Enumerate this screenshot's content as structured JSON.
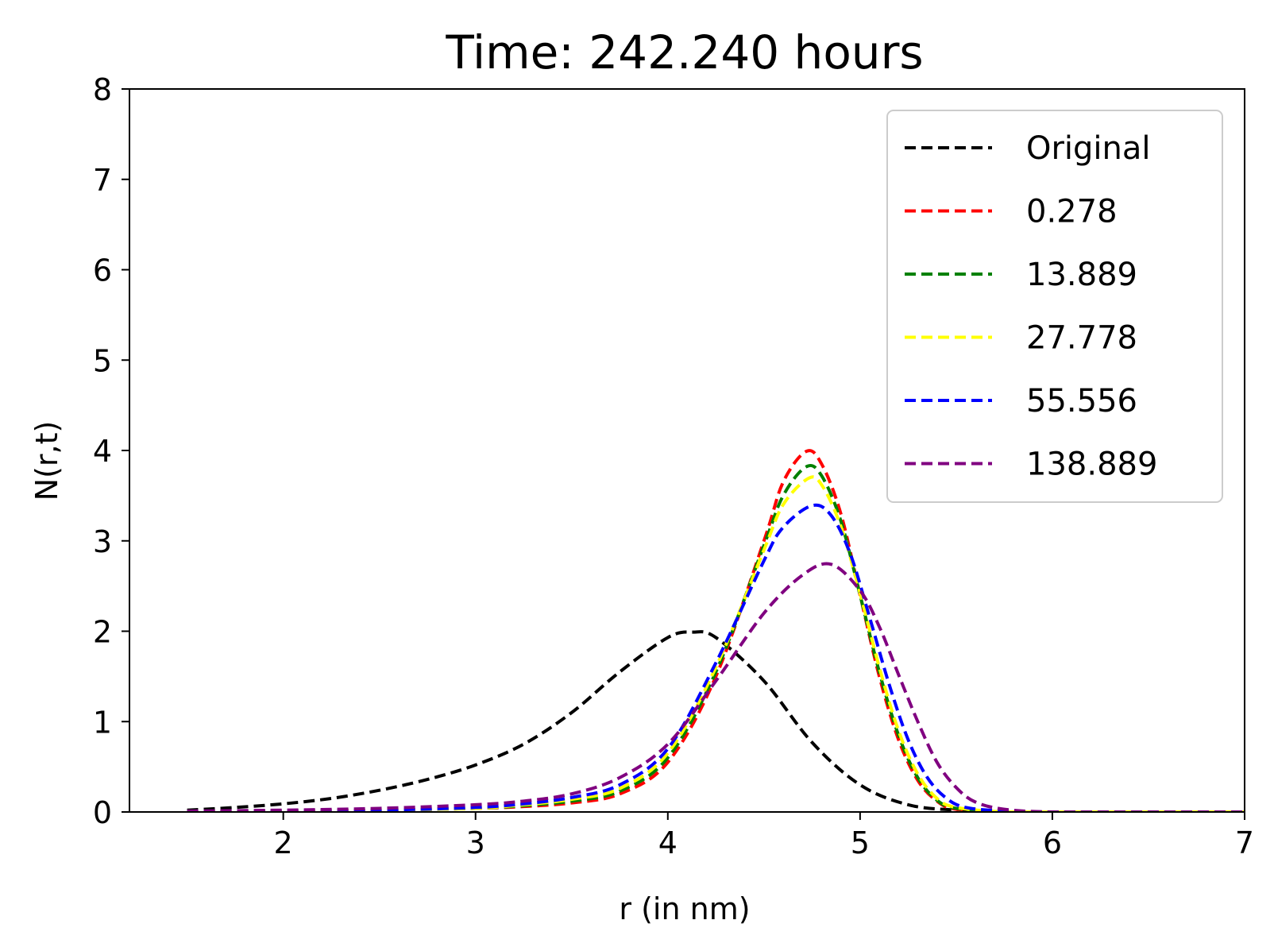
{
  "chart_data": {
    "type": "line",
    "title": "Time: 242.240 hours",
    "xlabel": "r (in nm)",
    "ylabel": "N(r,t)",
    "xlim": [
      1.2,
      7
    ],
    "ylim": [
      0,
      8
    ],
    "xticks": [
      2,
      3,
      4,
      5,
      6,
      7
    ],
    "yticks": [
      0,
      1,
      2,
      3,
      4,
      5,
      6,
      7,
      8
    ],
    "grid": false,
    "legend": "top-right",
    "line_style": "dashed",
    "series": [
      {
        "name": "Original",
        "color": "#000000",
        "x": [
          1.5,
          1.75,
          2.0,
          2.25,
          2.5,
          2.75,
          3.0,
          3.25,
          3.5,
          3.75,
          4.0,
          4.13,
          4.25,
          4.5,
          4.75,
          5.0,
          5.25,
          5.5,
          5.75,
          6.0,
          6.5,
          7.0
        ],
        "y": [
          0.02,
          0.05,
          0.09,
          0.15,
          0.24,
          0.36,
          0.52,
          0.75,
          1.1,
          1.55,
          1.93,
          1.99,
          1.93,
          1.45,
          0.77,
          0.3,
          0.08,
          0.02,
          0.0,
          0.0,
          0.0,
          0.0
        ]
      },
      {
        "name": "0.278",
        "color": "#ff0000",
        "x": [
          1.5,
          2.0,
          2.5,
          3.0,
          3.25,
          3.5,
          3.75,
          4.0,
          4.25,
          4.5,
          4.6,
          4.72,
          4.8,
          4.9,
          5.0,
          5.1,
          5.2,
          5.3,
          5.4,
          5.5,
          5.75,
          6.0,
          6.5,
          7.0
        ],
        "y": [
          0.0,
          0.01,
          0.02,
          0.04,
          0.06,
          0.1,
          0.2,
          0.55,
          1.5,
          3.0,
          3.65,
          3.99,
          3.85,
          3.3,
          2.4,
          1.5,
          0.8,
          0.35,
          0.12,
          0.03,
          0.0,
          0.0,
          0.0,
          0.0
        ]
      },
      {
        "name": "13.889",
        "color": "#008000",
        "x": [
          1.5,
          2.0,
          2.5,
          3.0,
          3.25,
          3.5,
          3.75,
          4.0,
          4.25,
          4.5,
          4.6,
          4.72,
          4.8,
          4.9,
          5.0,
          5.1,
          5.2,
          5.3,
          5.4,
          5.5,
          5.75,
          6.0,
          6.5,
          7.0
        ],
        "y": [
          0.0,
          0.01,
          0.02,
          0.04,
          0.07,
          0.12,
          0.23,
          0.6,
          1.55,
          2.95,
          3.5,
          3.82,
          3.72,
          3.22,
          2.4,
          1.55,
          0.85,
          0.38,
          0.13,
          0.04,
          0.0,
          0.0,
          0.0,
          0.0
        ]
      },
      {
        "name": "27.778",
        "color": "#ffff00",
        "x": [
          1.5,
          2.0,
          2.5,
          3.0,
          3.25,
          3.5,
          3.75,
          4.0,
          4.25,
          4.5,
          4.6,
          4.73,
          4.8,
          4.9,
          5.0,
          5.1,
          5.2,
          5.3,
          5.4,
          5.5,
          5.75,
          6.0,
          6.5,
          7.0
        ],
        "y": [
          0.0,
          0.01,
          0.02,
          0.04,
          0.08,
          0.14,
          0.26,
          0.65,
          1.6,
          2.9,
          3.4,
          3.69,
          3.62,
          3.16,
          2.42,
          1.6,
          0.9,
          0.42,
          0.15,
          0.05,
          0.0,
          0.0,
          0.0,
          0.0
        ]
      },
      {
        "name": "55.556",
        "color": "#0000ff",
        "x": [
          1.5,
          2.0,
          2.5,
          3.0,
          3.25,
          3.5,
          3.75,
          4.0,
          4.25,
          4.5,
          4.6,
          4.75,
          4.85,
          4.95,
          5.05,
          5.15,
          5.25,
          5.35,
          5.45,
          5.55,
          5.75,
          6.0,
          6.5,
          7.0
        ],
        "y": [
          0.0,
          0.01,
          0.02,
          0.05,
          0.09,
          0.16,
          0.3,
          0.7,
          1.65,
          2.78,
          3.15,
          3.39,
          3.28,
          2.85,
          2.15,
          1.42,
          0.8,
          0.38,
          0.15,
          0.05,
          0.01,
          0.0,
          0.0,
          0.0
        ]
      },
      {
        "name": "138.889",
        "color": "#800080",
        "x": [
          1.5,
          2.0,
          2.5,
          3.0,
          3.25,
          3.5,
          3.75,
          4.0,
          4.25,
          4.5,
          4.7,
          4.85,
          5.0,
          5.1,
          5.2,
          5.3,
          5.4,
          5.5,
          5.6,
          5.75,
          6.0,
          6.5,
          7.0
        ],
        "y": [
          0.01,
          0.02,
          0.04,
          0.08,
          0.12,
          0.2,
          0.38,
          0.75,
          1.45,
          2.2,
          2.62,
          2.74,
          2.45,
          2.05,
          1.52,
          1.0,
          0.55,
          0.27,
          0.11,
          0.03,
          0.0,
          0.0,
          0.0
        ]
      }
    ]
  }
}
